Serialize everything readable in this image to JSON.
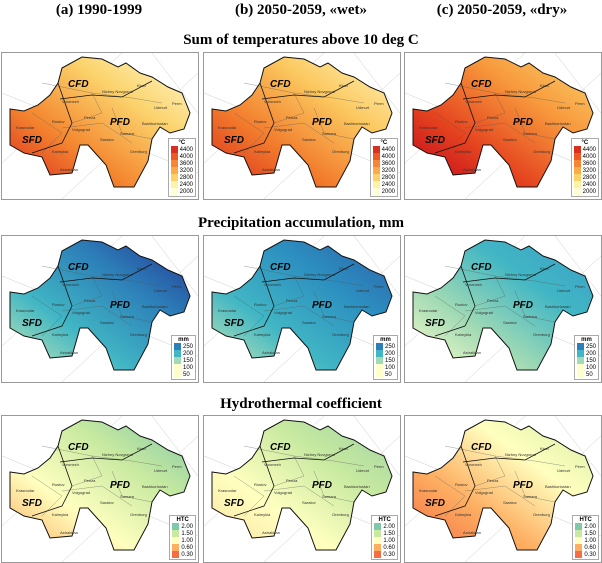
{
  "columns": [
    "(a) 1990-1999",
    "(b) 2050-2059, «wet»",
    "(c) 2050-2059, «dry»"
  ],
  "districts": [
    "CFD",
    "PFD",
    "SFD"
  ],
  "cities": [
    "Nizhny Novgorod",
    "Kirov",
    "Perm",
    "Udmurt",
    "Penza",
    "Samara",
    "Saratov",
    "Volgograd",
    "Rostov",
    "Kalmykia",
    "Astrakhan",
    "Krasnodar",
    "Voronezh",
    "Orenburg",
    "Bashkortostan"
  ],
  "rows": [
    {
      "title": "Sum of temperatures above 10 deg C",
      "unit": "°C",
      "ticks": [
        "4400",
        "4000",
        "3600",
        "3200",
        "2800",
        "2400",
        "2000"
      ],
      "legend_colors": [
        "#b2001e",
        "#d8301c",
        "#ee5a25",
        "#f58634",
        "#f9ac47",
        "#fcd168",
        "#fdf3a8",
        "#ffffd4"
      ],
      "panels": [
        [
          "#d9261c",
          "#f4862f",
          "#fbd36c",
          "#fffbd0"
        ],
        [
          "#da2a1c",
          "#f27b2c",
          "#fbc85f",
          "#fff6bb"
        ],
        [
          "#c0001d",
          "#e5441f",
          "#f7993c",
          "#fcd56e"
        ]
      ]
    },
    {
      "title": "Precipitation accumulation, mm",
      "unit": "mm",
      "ticks": [
        "250",
        "200",
        "150",
        "100",
        "50"
      ],
      "legend_colors": [
        "#253494",
        "#2c7fb8",
        "#41b6c4",
        "#a1dab4",
        "#ffffcc"
      ],
      "panels": [
        [
          "#c7e9b4",
          "#41b6c4",
          "#2c7fb8",
          "#253494"
        ],
        [
          "#c7e9b4",
          "#41b6c4",
          "#2c8fc0",
          "#2c5fa8"
        ],
        [
          "#ffffcc",
          "#a1dab4",
          "#41b6c4",
          "#3a9dc8"
        ]
      ]
    },
    {
      "title": "Hydrothermal coefficient",
      "unit": "HTC",
      "ticks": [
        "2.00",
        "1.50",
        "1.00",
        "0.60",
        "0.30"
      ],
      "legend_colors": [
        "#2b83ba",
        "#7fc8a9",
        "#c7e9a0",
        "#ffffbf",
        "#fdae61",
        "#f46d43"
      ],
      "panels": [
        [
          "#fdae61",
          "#ffffbf",
          "#c7e9a0",
          "#7fc8a9"
        ],
        [
          "#fde2a0",
          "#ffffbf",
          "#c7e9a0",
          "#9ed3a4"
        ],
        [
          "#f46d43",
          "#fdae61",
          "#ffffbf",
          "#d6eda4"
        ]
      ]
    }
  ]
}
